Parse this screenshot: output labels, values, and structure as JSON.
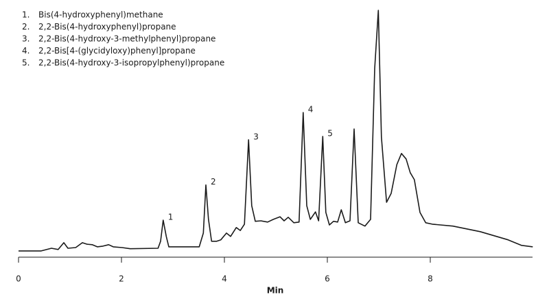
{
  "chart_data": {
    "type": "line",
    "xlabel": "Min",
    "xlim": [
      0,
      10
    ],
    "xticks": [
      0,
      2,
      4,
      6,
      8
    ],
    "ylim": [
      -2.6,
      100
    ],
    "x": [
      0,
      0.44,
      0.64,
      0.77,
      0.88,
      0.96,
      1.11,
      1.24,
      1.33,
      1.43,
      1.53,
      1.64,
      1.75,
      1.84,
      2.01,
      2.17,
      2.71,
      2.76,
      2.81,
      2.87,
      2.92,
      3.51,
      3.59,
      3.64,
      3.69,
      3.75,
      3.85,
      3.93,
      4.04,
      4.12,
      4.23,
      4.31,
      4.39,
      4.47,
      4.53,
      4.6,
      4.71,
      4.84,
      4.95,
      5.08,
      5.16,
      5.24,
      5.35,
      5.45,
      5.53,
      5.6,
      5.67,
      5.77,
      5.83,
      5.91,
      5.97,
      6.04,
      6.12,
      6.2,
      6.27,
      6.35,
      6.44,
      6.52,
      6.6,
      6.73,
      6.84,
      6.92,
      6.99,
      7.05,
      7.15,
      7.24,
      7.35,
      7.44,
      7.53,
      7.61,
      7.69,
      7.8,
      7.91,
      8.04,
      8.44,
      8.97,
      9.51,
      9.77,
      9.99
    ],
    "series": [
      {
        "color": "#1a1a1a",
        "values": [
          0,
          0,
          1.1,
          0.6,
          3.4,
          1.1,
          1.4,
          3.4,
          2.8,
          2.6,
          1.7,
          2.0,
          2.6,
          1.7,
          1.4,
          0.9,
          1.1,
          4.0,
          12.8,
          6.0,
          1.7,
          1.7,
          7.4,
          27.4,
          13.1,
          4.0,
          4.0,
          4.6,
          7.4,
          6.0,
          9.7,
          8.5,
          11.1,
          46.2,
          18.8,
          12.3,
          12.5,
          12.0,
          13.1,
          14.2,
          12.5,
          14.0,
          11.7,
          12.0,
          57.5,
          18.8,
          13.1,
          16.2,
          12.5,
          47.6,
          16.0,
          10.8,
          12.3,
          12.0,
          17.1,
          11.7,
          12.5,
          50.7,
          11.7,
          10.3,
          13.1,
          75.8,
          100,
          47.3,
          20.2,
          23.9,
          35.9,
          40.5,
          38.2,
          32.5,
          29.6,
          16.0,
          11.7,
          11.1,
          10.3,
          8.0,
          4.6,
          2.3,
          1.7
        ]
      }
    ],
    "annotations": [
      {
        "text": "1",
        "x": 2.81
      },
      {
        "text": "2",
        "x": 3.64
      },
      {
        "text": "3",
        "x": 4.47
      },
      {
        "text": "4",
        "x": 5.53
      },
      {
        "text": "5",
        "x": 5.91
      }
    ],
    "compounds": [
      {
        "number": "1.",
        "name": "Bis(4-hydroxyphenyl)methane"
      },
      {
        "number": "2.",
        "name": "2,2-Bis(4-hydroxyphenyl)propane"
      },
      {
        "number": "3.",
        "name": "2,2-Bis(4-hydroxy-3-methylphenyl)propane"
      },
      {
        "number": "4.",
        "name": "2,2-Bis[4-(glycidyloxy)phenyl]propane"
      },
      {
        "number": "5.",
        "name": "2,2-Bis(4-hydroxy-3-isopropylphenyl)propane"
      }
    ]
  }
}
